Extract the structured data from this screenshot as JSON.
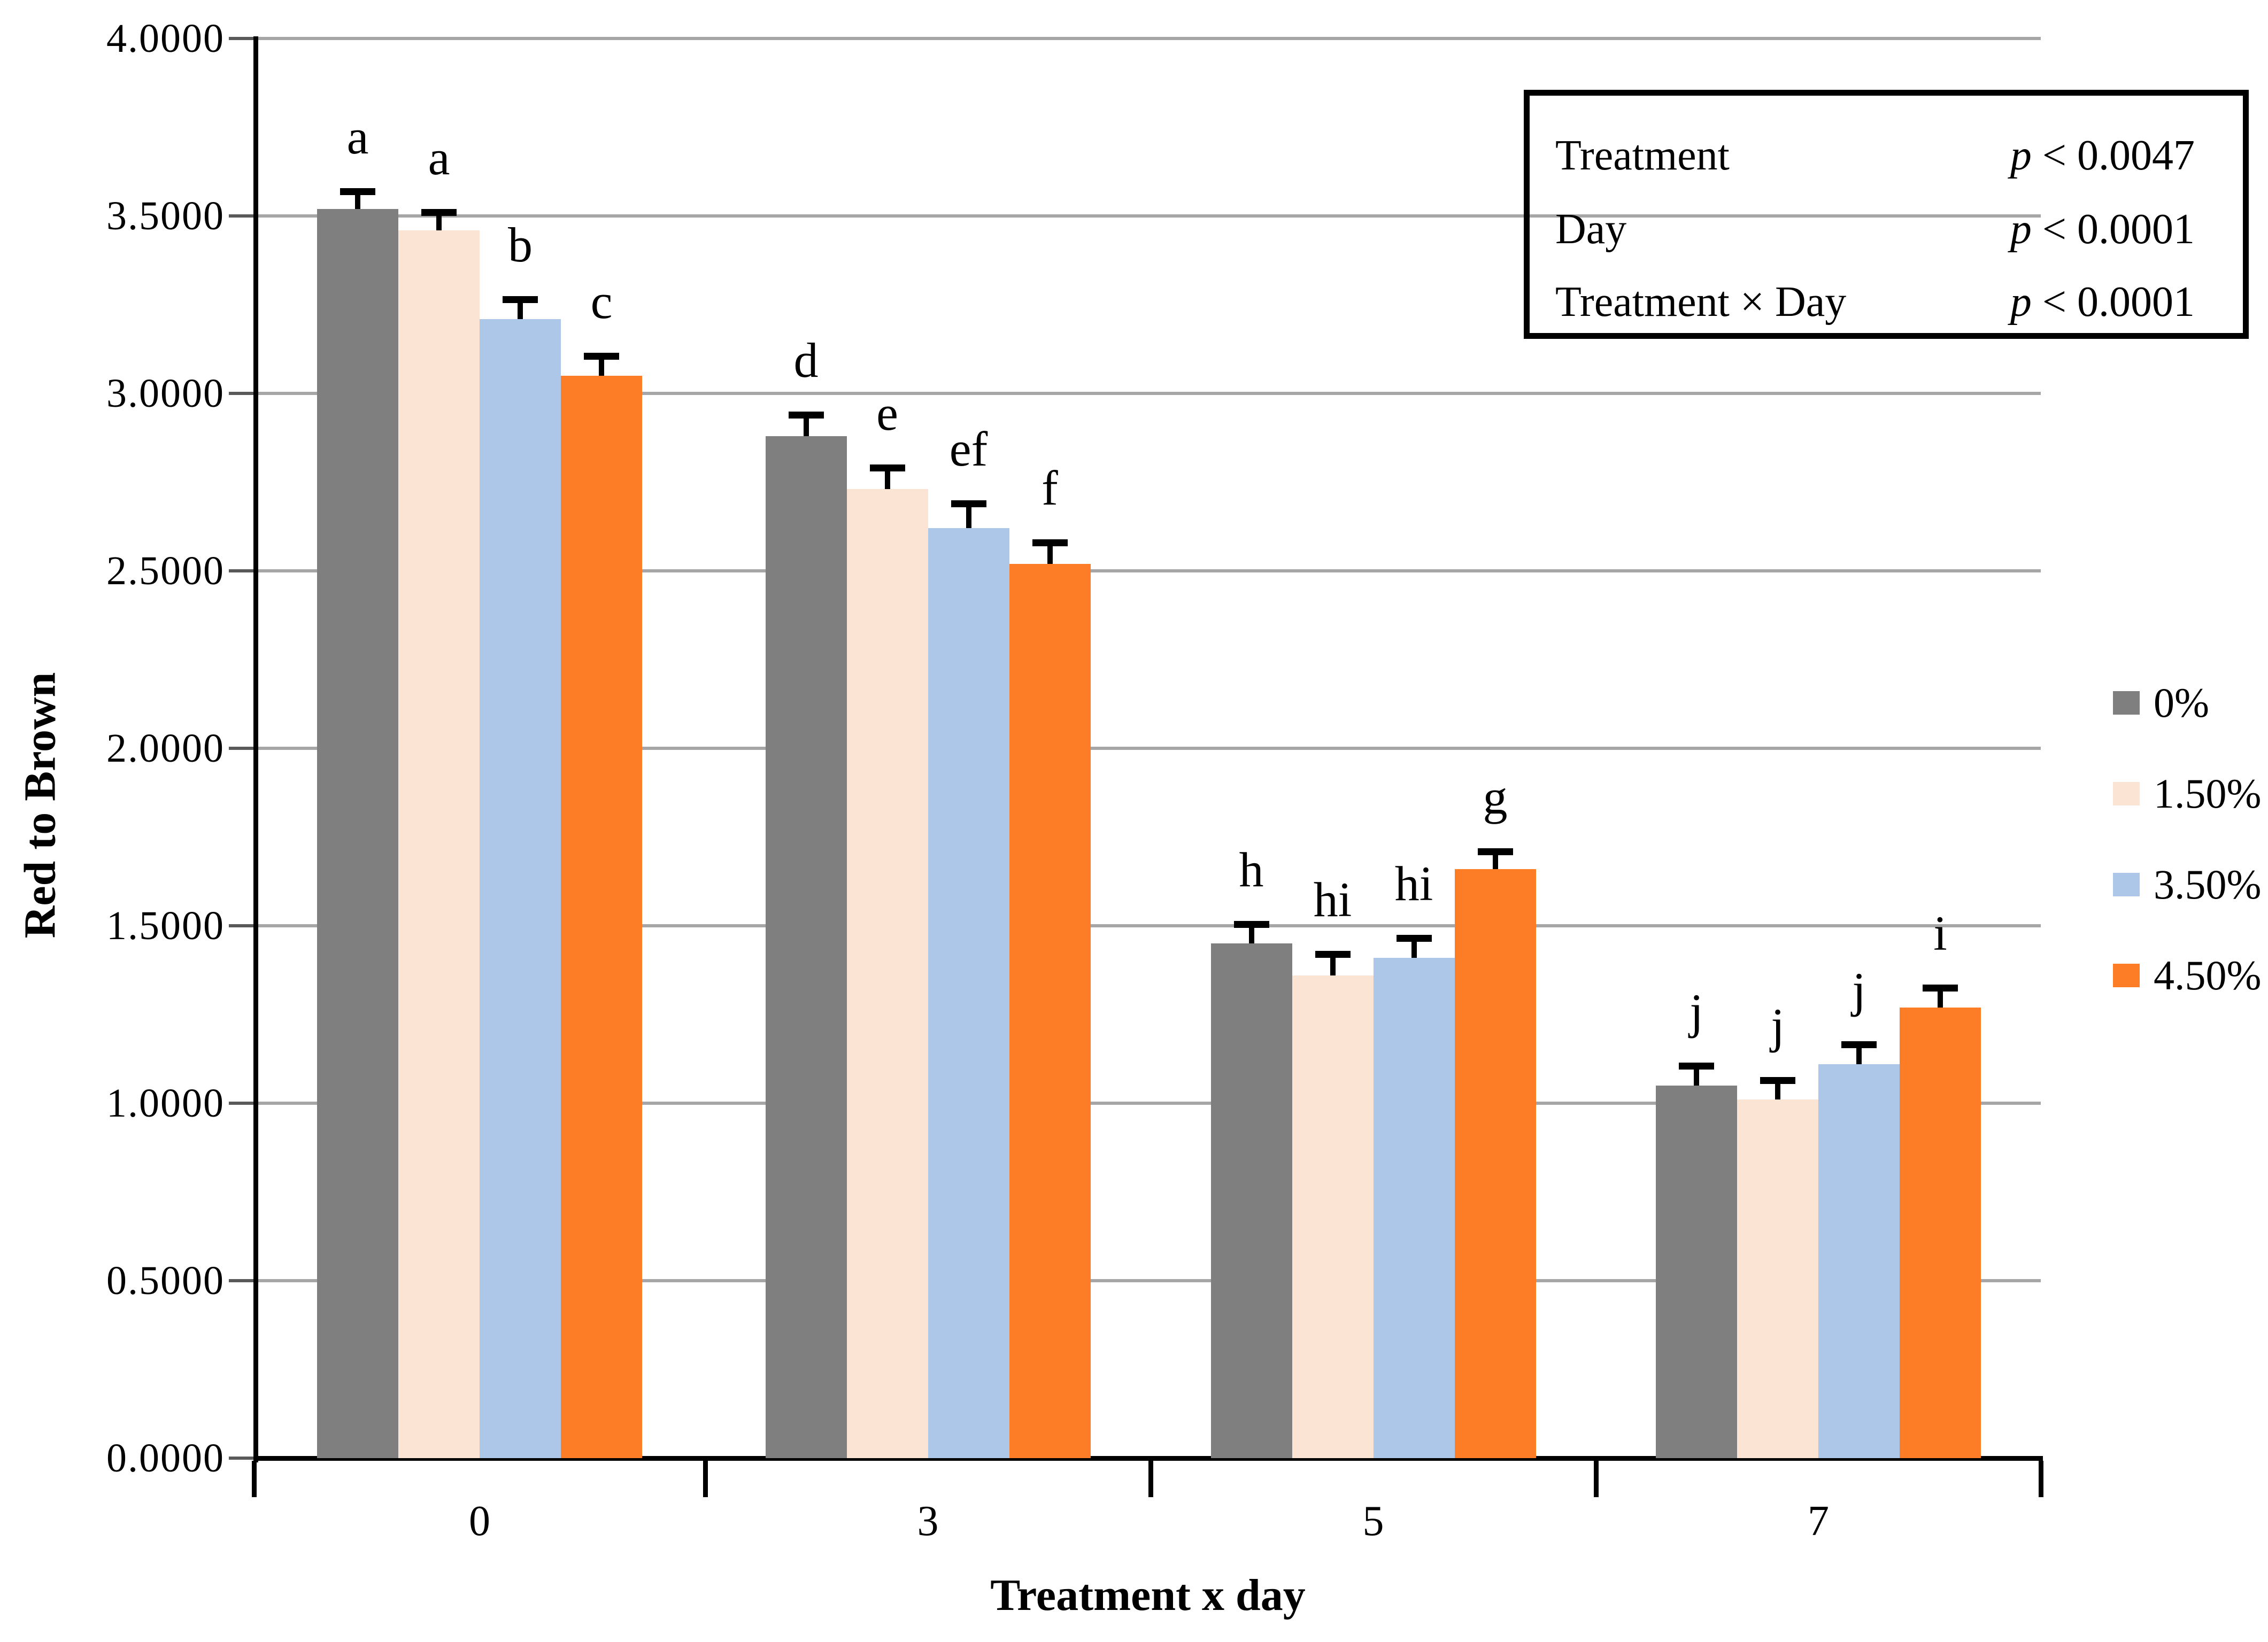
{
  "chart_data": {
    "type": "bar",
    "title": "",
    "ylabel": "Red to Brown",
    "xlabel": "Treatment x day",
    "ylim": [
      0.0,
      4.0
    ],
    "ytick_step": 0.5,
    "ytick_labels": [
      "0.0000",
      "0.5000",
      "1.0000",
      "1.5000",
      "2.0000",
      "2.5000",
      "3.0000",
      "3.5000",
      "4.0000"
    ],
    "categories": [
      "0",
      "3",
      "5",
      "7"
    ],
    "series": [
      {
        "name": "0%",
        "color": "#7F7F7F",
        "values": [
          3.52,
          2.88,
          1.45,
          1.05
        ],
        "errors": [
          0.05,
          0.06,
          0.055,
          0.055
        ],
        "letters": [
          "a",
          "d",
          "h",
          "j"
        ]
      },
      {
        "name": "1.50%",
        "color": "#FCE4D4",
        "values": [
          3.46,
          2.73,
          1.36,
          1.01
        ],
        "errors": [
          0.05,
          0.06,
          0.06,
          0.055
        ],
        "letters": [
          "a",
          "e",
          "hi",
          "j"
        ]
      },
      {
        "name": "3.50%",
        "color": "#ACC7E8",
        "values": [
          3.21,
          2.62,
          1.41,
          1.11
        ],
        "errors": [
          0.055,
          0.07,
          0.055,
          0.055
        ],
        "letters": [
          "b",
          "ef",
          "hi",
          "j"
        ]
      },
      {
        "name": "4.50%",
        "color": "#FC7D26",
        "values": [
          3.05,
          2.52,
          1.66,
          1.27
        ],
        "errors": [
          0.055,
          0.06,
          0.05,
          0.055
        ],
        "letters": [
          "c",
          "f",
          "g",
          "i"
        ]
      }
    ],
    "grid": true,
    "gridline_color": "#A6A6A6",
    "error_bar_color": "#000000",
    "legend_position": "right",
    "stats_box": {
      "rows": [
        {
          "label": "Treatment",
          "p": "p",
          "value": "< 0.0047"
        },
        {
          "label": "Day",
          "p": "p",
          "value": "< 0.0001"
        },
        {
          "label": "Treatment × Day",
          "p": "p",
          "value": "< 0.0001"
        }
      ]
    }
  }
}
